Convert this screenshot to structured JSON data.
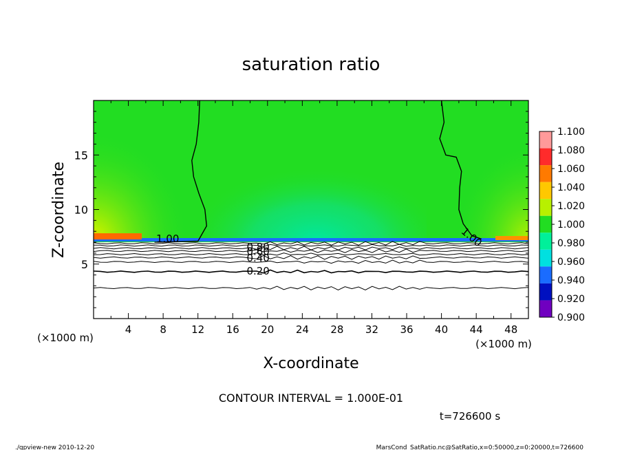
{
  "chart_data": {
    "type": "heatmap",
    "title": "saturation ratio",
    "xlabel": "X-coordinate",
    "ylabel": "Z-coordinate",
    "x_unit": "(×1000 m)",
    "x_unit_right": "(×1000 m)",
    "y_unit": "",
    "xlim": [
      0,
      50
    ],
    "ylim": [
      0,
      20
    ],
    "x_ticks": [
      4,
      8,
      12,
      16,
      20,
      24,
      28,
      32,
      36,
      40,
      44,
      48
    ],
    "y_ticks": [
      5,
      10,
      15
    ],
    "colorbar": {
      "labels": [
        "1.100",
        "1.080",
        "1.060",
        "1.040",
        "1.020",
        "1.000",
        "0.980",
        "0.960",
        "0.940",
        "0.920",
        "0.900"
      ],
      "colors": [
        "#ff9a9a",
        "#ff2b2b",
        "#ff7a00",
        "#ffc800",
        "#b8f000",
        "#22dd22",
        "#00f09a",
        "#00e0e0",
        "#1a6cff",
        "#0010c0",
        "#7000c0"
      ]
    },
    "contour_labels": [
      "1.00",
      "0.80",
      "0.60",
      "0.40",
      "0.20",
      "1.00"
    ],
    "contour_interval_text": "CONTOUR INTERVAL = 1.000E-01",
    "time_text": "t=726600 s",
    "saturated_layer_top_z": 7.0
  },
  "footer": {
    "left": "./gpview-new   2010-12-20",
    "right": "MarsCond_SatRatio.nc@SatRatio,x=0:50000,z=0:20000,t=726600"
  }
}
